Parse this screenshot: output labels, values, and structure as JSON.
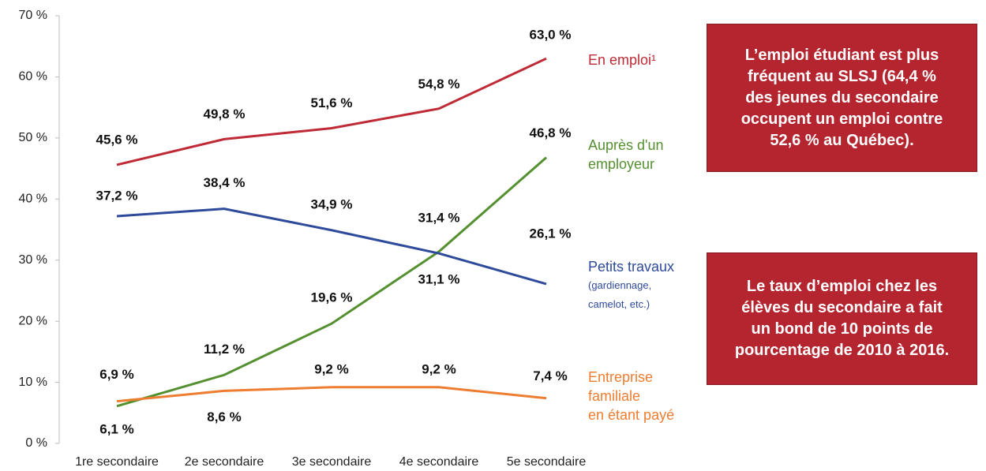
{
  "chart_data": {
    "type": "line",
    "categories": [
      "1re secondaire",
      "2e secondaire",
      "3e secondaire",
      "4e secondaire",
      "5e secondaire"
    ],
    "ylim": [
      0,
      70
    ],
    "yticks": [
      {
        "value": 0,
        "label": "0 %"
      },
      {
        "value": 10,
        "label": "10 %"
      },
      {
        "value": 20,
        "label": "20 %"
      },
      {
        "value": 30,
        "label": "30 %"
      },
      {
        "value": 40,
        "label": "40 %"
      },
      {
        "value": 50,
        "label": "50 %"
      },
      {
        "value": 60,
        "label": "60 %"
      },
      {
        "value": 70,
        "label": "70 %"
      }
    ],
    "grid": false,
    "series": [
      {
        "name": "En emploi¹",
        "color": "#be2a35",
        "values": [
          45.6,
          49.8,
          51.6,
          54.8,
          63.0
        ],
        "value_labels": [
          "45,6 %",
          "49,8 %",
          "51,6 %",
          "54,8 %",
          "63,0 %"
        ]
      },
      {
        "name": "Auprès d'un\nemployeur",
        "color": "#559030",
        "values": [
          6.1,
          11.2,
          19.6,
          31.4,
          46.8
        ],
        "value_labels": [
          "6,1 %",
          "11,2 %",
          "19,6 %",
          "31,4 %",
          "46,8 %"
        ]
      },
      {
        "name": "Petits travaux",
        "note": "(gardiennage,\ncamelot, etc.)",
        "color": "#2e4a9a",
        "values": [
          37.2,
          38.4,
          34.9,
          31.1,
          26.1
        ],
        "value_labels": [
          "37,2 %",
          "38,4 %",
          "34,9 %",
          "31,1 %",
          "26,1 %"
        ]
      },
      {
        "name": "Entreprise\nfamiliale\nen étant payé",
        "color": "#ed7d31",
        "values": [
          6.9,
          8.6,
          9.2,
          9.2,
          7.4
        ],
        "value_labels": [
          "6,9 %",
          "8,6 %",
          "9,2 %",
          "9,2 %",
          "7,4 %"
        ]
      }
    ],
    "annotations": [
      "L’emploi étudiant est plus\nfréquent au SLSJ (64,4 %\ndes jeunes du secondaire\noccupent un emploi contre\n52,6 % au Québec).",
      "Le taux d’emploi chez les\nélèves du secondaire a fait\nun bond de 10 points de\npourcentage de 2010 à 2016."
    ]
  }
}
